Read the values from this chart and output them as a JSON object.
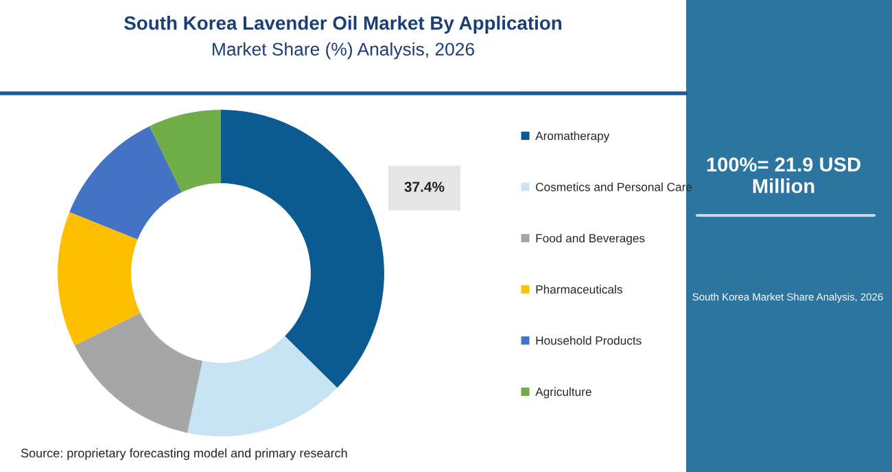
{
  "chart_data": {
    "type": "donut",
    "title": "South Korea Lavender Oil Market By Application",
    "subtitle": "Market Share (%) Analysis, 2026",
    "categories": [
      "Aromatherapy",
      "Cosmetics and Personal Care",
      "Food and Beverages",
      "Pharmaceuticals",
      "Household Products",
      "Agriculture"
    ],
    "values": [
      37.4,
      15.9,
      14.4,
      13.4,
      11.7,
      7.2
    ],
    "colors": [
      "#0b5a91",
      "#c7e3f4",
      "#a6a6a6",
      "#fdbf00",
      "#4472c4",
      "#70ad47"
    ],
    "value_labels": [
      "37.4%",
      null,
      null,
      null,
      null,
      null
    ],
    "legend": "right",
    "annotations": [
      "100%= 21.9 USD Million",
      "South Korea Market Share Analysis, 2026",
      "Source: proprietary forecasting model and primary research"
    ]
  }
}
